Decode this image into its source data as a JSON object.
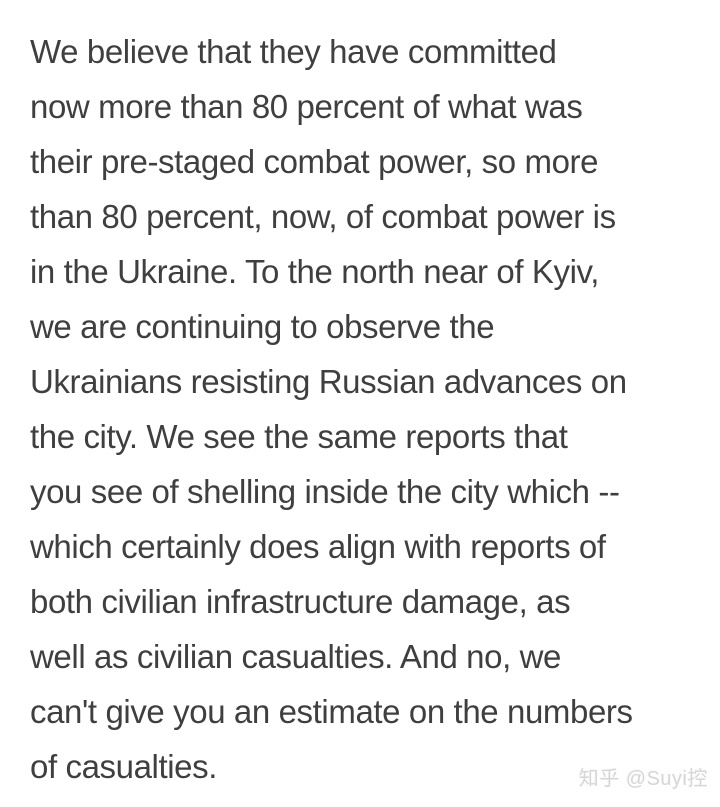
{
  "transcript": {
    "lines": [
      "We believe that they have committed",
      "now more than 80 percent of what was",
      "their pre-staged combat power, so more",
      "than 80 percent, now, of combat power is",
      "in the Ukraine. To the north near of Kyiv,",
      "we are continuing to observe the",
      "Ukrainians resisting Russian advances on",
      "the city. We see the same reports that",
      "you see of shelling inside the city which --",
      "which certainly does align with reports of",
      "both civilian infrastructure damage, as",
      "well as civilian casualties. And no, we",
      "can't give you an estimate on the numbers",
      "of casualties."
    ],
    "full_text": "We believe that they have committed now more than 80 percent of what was their pre-staged combat power, so more than 80 percent, now, of combat power is in the Ukraine. To the north near of Kyiv, we are continuing to observe the Ukrainians resisting Russian advances on the city. We see the same reports that you see of shelling inside the city which -- which certainly does align with reports of both civilian infrastructure damage, as well as civilian casualties. And no, we can't give you an estimate on the numbers of casualties."
  },
  "watermark": {
    "text": "知乎 @Suyi控"
  },
  "colors": {
    "background": "#ffffff",
    "text": "#3f3f3f",
    "watermark": "#d6d6d6"
  }
}
